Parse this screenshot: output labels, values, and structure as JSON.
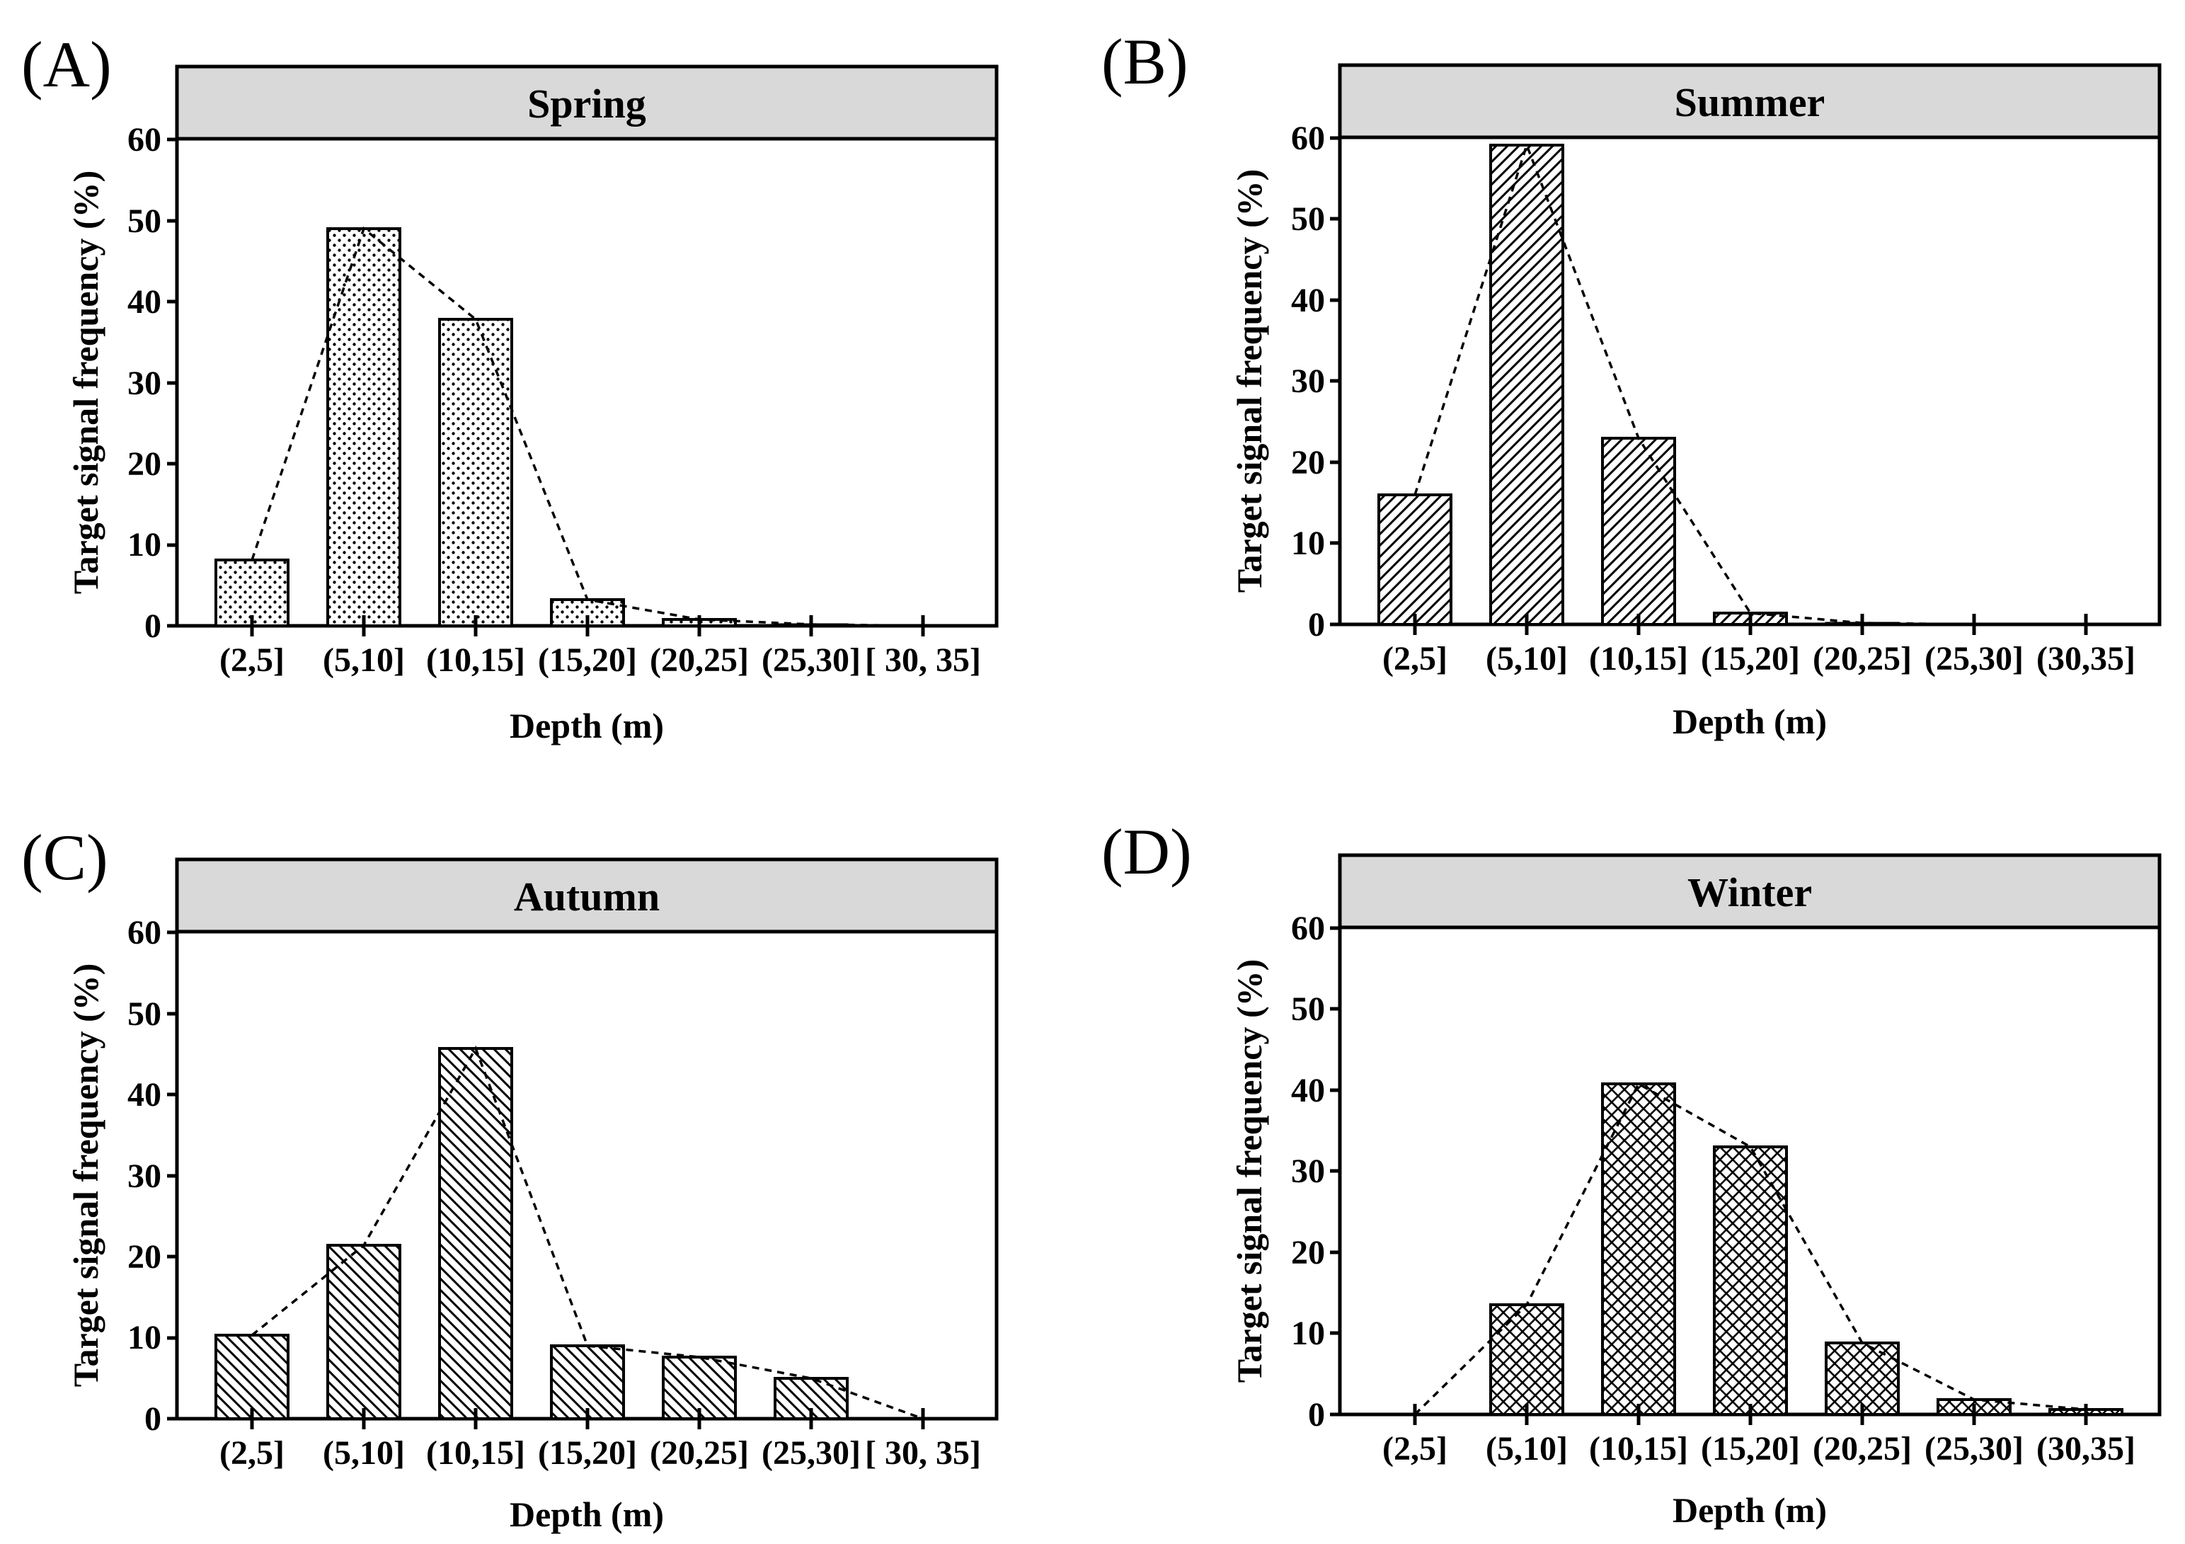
{
  "figure": {
    "background": "#ffffff",
    "strip_color": "#d9d9d9",
    "ink_color": "#000000"
  },
  "chart_data": [
    {
      "type": "bar",
      "panel_label": "(A)",
      "title": "Spring",
      "pattern": "dots",
      "xlabel": "Depth (m)",
      "ylabel": "Target signal frequency (%)",
      "categories": [
        "(2,5]",
        "(5,10]",
        "(10,15]",
        "(15,20]",
        "(20,25]",
        "(25,30]",
        "[ 30,  35]"
      ],
      "values": [
        8.1,
        49,
        37.8,
        3.2,
        0.8,
        0.2,
        0
      ],
      "yticks": [
        "0",
        "10",
        "20",
        "30",
        "40",
        "50",
        "60"
      ],
      "ylim": [
        0,
        60
      ],
      "trend_line": "dashed line through bar tops"
    },
    {
      "type": "bar",
      "panel_label": "(B)",
      "title": "Summer",
      "pattern": "diagonal-up",
      "xlabel": "Depth (m)",
      "ylabel": "Target signal frequency (%)",
      "categories": [
        "(2,5]",
        "(5,10]",
        "(10,15]",
        "(15,20]",
        "(20,25]",
        "(25,30]",
        "(30,35]"
      ],
      "values": [
        16,
        59.2,
        23,
        1.4,
        0.2,
        0,
        0
      ],
      "yticks": [
        "0",
        "10",
        "20",
        "30",
        "40",
        "50",
        "60"
      ],
      "ylim": [
        0,
        60
      ],
      "trend_line": "dashed line through bar tops"
    },
    {
      "type": "bar",
      "panel_label": "(C)",
      "title": "Autumn",
      "pattern": "diagonal-down",
      "xlabel": "Depth (m)",
      "ylabel": "Target signal frequency (%)",
      "categories": [
        "(2,5]",
        "(5,10]",
        "(10,15]",
        "(15,20]",
        "(20,25]",
        "(25,30]",
        "[ 30,  35]"
      ],
      "values": [
        10.3,
        21.4,
        45.7,
        9,
        7.6,
        5,
        0
      ],
      "yticks": [
        "0",
        "10",
        "20",
        "30",
        "40",
        "50",
        "60"
      ],
      "ylim": [
        0,
        60
      ],
      "trend_line": "dashed line through bar tops"
    },
    {
      "type": "bar",
      "panel_label": "(D)",
      "title": "Winter",
      "pattern": "crosshatch",
      "xlabel": "Depth (m)",
      "ylabel": "Target signal frequency (%)",
      "categories": [
        "(2,5]",
        "(5,10]",
        "(10,15]",
        "(15,20]",
        "(20,25]",
        "(25,30]",
        "(30,35]"
      ],
      "values": [
        0,
        13.5,
        40.8,
        33,
        8.8,
        1.8,
        0.6
      ],
      "yticks": [
        "0",
        "10",
        "20",
        "30",
        "40",
        "50",
        "60"
      ],
      "ylim": [
        0,
        60
      ],
      "trend_line": "dashed line through bar tops"
    }
  ]
}
